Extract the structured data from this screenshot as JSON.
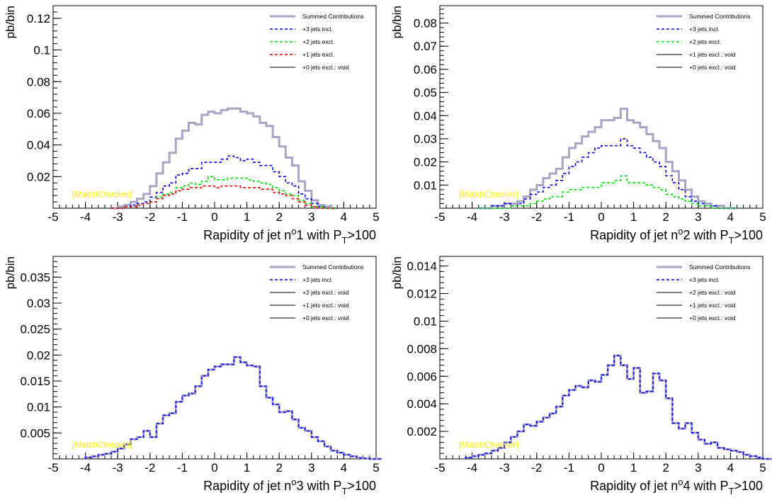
{
  "colors": {
    "summed": "#a8a4c4",
    "jets3": "#0000ee",
    "jets2": "#00dd00",
    "jets1": "#ee0000",
    "void": "#000000",
    "watermark": "#ffee00",
    "axis": "#000000"
  },
  "chart_data": [
    {
      "type": "line",
      "title": "",
      "xlabel_main": "Rapidity of jet n",
      "xlabel_sup": "o",
      "xlabel_num": "1 with P",
      "xlabel_sub": "T",
      "xlabel_tail": ">100",
      "ylabel": "pb/bin",
      "xlim": [
        -5,
        5
      ],
      "ylim": [
        0,
        0.128
      ],
      "yticks": [
        0.02,
        0.04,
        0.06,
        0.08,
        0.1,
        0.12
      ],
      "ytick_labels": [
        "0.02",
        "0.04",
        "0.06",
        "0.08",
        "0.1",
        "0.12"
      ],
      "xticks": [
        -5,
        -4,
        -3,
        -2,
        -1,
        0,
        1,
        2,
        3,
        4,
        5
      ],
      "xtick_labels": [
        "-5",
        "-4",
        "-3",
        "-2",
        "-1",
        "0",
        "1",
        "2",
        "3",
        "4",
        "5"
      ],
      "watermark": "[MatchChecker]",
      "legend_position": "top-right",
      "bin_edges_start": -3.2,
      "bin_width": 0.2,
      "legend": [
        {
          "label": "Summed Contributions",
          "color_key": "summed",
          "style": "solid-thick"
        },
        {
          "label": "+3 jets incl.",
          "color_key": "jets3",
          "style": "dashed"
        },
        {
          "label": "+2 jets excl.",
          "color_key": "jets2",
          "style": "dashed"
        },
        {
          "label": "+1 jets excl.",
          "color_key": "jets1",
          "style": "dashed"
        },
        {
          "label": "+0 jets  excl.: void",
          "color_key": "void",
          "style": "solid"
        }
      ],
      "series": [
        {
          "name": "Summed Contributions",
          "color_key": "summed",
          "style": "solid-thick",
          "values": [
            0.0,
            0.001,
            0.002,
            0.004,
            0.006,
            0.009,
            0.014,
            0.022,
            0.029,
            0.035,
            0.044,
            0.049,
            0.054,
            0.053,
            0.059,
            0.061,
            0.06,
            0.062,
            0.063,
            0.063,
            0.061,
            0.06,
            0.058,
            0.054,
            0.052,
            0.045,
            0.039,
            0.032,
            0.027,
            0.017,
            0.011,
            0.005,
            0.002,
            0.001,
            0.0
          ]
        },
        {
          "name": "+3 jets incl.",
          "color_key": "jets3",
          "style": "dashed",
          "values": [
            0.0,
            0.0,
            0.001,
            0.002,
            0.003,
            0.004,
            0.007,
            0.01,
            0.014,
            0.016,
            0.021,
            0.022,
            0.025,
            0.025,
            0.029,
            0.029,
            0.029,
            0.031,
            0.033,
            0.032,
            0.03,
            0.031,
            0.029,
            0.027,
            0.027,
            0.023,
            0.02,
            0.016,
            0.014,
            0.009,
            0.006,
            0.003,
            0.001,
            0.0,
            0.0
          ]
        },
        {
          "name": "+2 jets excl.",
          "color_key": "jets2",
          "style": "dashed",
          "values": [
            0.0,
            0.0,
            0.001,
            0.001,
            0.002,
            0.003,
            0.004,
            0.007,
            0.009,
            0.01,
            0.013,
            0.014,
            0.016,
            0.015,
            0.017,
            0.02,
            0.018,
            0.018,
            0.019,
            0.019,
            0.019,
            0.018,
            0.017,
            0.016,
            0.015,
            0.013,
            0.011,
            0.009,
            0.008,
            0.005,
            0.003,
            0.001,
            0.001,
            0.0,
            0.0
          ]
        },
        {
          "name": "+1 jets excl.",
          "color_key": "jets1",
          "style": "dashed",
          "values": [
            0.0,
            0.0,
            0.001,
            0.001,
            0.002,
            0.003,
            0.004,
            0.006,
            0.008,
            0.009,
            0.011,
            0.012,
            0.013,
            0.013,
            0.014,
            0.014,
            0.013,
            0.014,
            0.014,
            0.014,
            0.013,
            0.013,
            0.013,
            0.012,
            0.012,
            0.01,
            0.009,
            0.008,
            0.006,
            0.004,
            0.002,
            0.001,
            0.0,
            0.0,
            0.0
          ]
        }
      ]
    },
    {
      "type": "line",
      "title": "",
      "xlabel_main": "Rapidity of jet n",
      "xlabel_sup": "o",
      "xlabel_num": "2 with P",
      "xlabel_sub": "T",
      "xlabel_tail": ">100",
      "ylabel": "pb/bin",
      "xlim": [
        -5,
        5
      ],
      "ylim": [
        0,
        0.0875
      ],
      "yticks": [
        0.01,
        0.02,
        0.03,
        0.04,
        0.05,
        0.06,
        0.07,
        0.08
      ],
      "ytick_labels": [
        "0.01",
        "0.02",
        "0.03",
        "0.04",
        "0.05",
        "0.06",
        "0.07",
        "0.08"
      ],
      "xticks": [
        -5,
        -4,
        -3,
        -2,
        -1,
        0,
        1,
        2,
        3,
        4,
        5
      ],
      "xtick_labels": [
        "-5",
        "-4",
        "-3",
        "-2",
        "-1",
        "0",
        "1",
        "2",
        "3",
        "4",
        "5"
      ],
      "watermark": "[MatchChecker]",
      "legend_position": "top-right",
      "bin_edges_start": -3.8,
      "bin_width": 0.2,
      "legend": [
        {
          "label": "Summed Contributions",
          "color_key": "summed",
          "style": "solid-thick"
        },
        {
          "label": "+3 jets incl.",
          "color_key": "jets3",
          "style": "dashed"
        },
        {
          "label": "+2 jets excl.",
          "color_key": "jets2",
          "style": "dashed"
        },
        {
          "label": "+1 jets excl.: void",
          "color_key": "void",
          "style": "solid"
        },
        {
          "label": "+0 jets  excl.: void",
          "color_key": "void",
          "style": "solid"
        }
      ],
      "series": [
        {
          "name": "Summed Contributions",
          "color_key": "summed",
          "style": "solid-thick",
          "values": [
            0.0,
            0.0,
            0.001,
            0.001,
            0.002,
            0.002,
            0.003,
            0.005,
            0.008,
            0.01,
            0.013,
            0.015,
            0.017,
            0.022,
            0.026,
            0.028,
            0.031,
            0.033,
            0.035,
            0.038,
            0.038,
            0.039,
            0.043,
            0.038,
            0.037,
            0.035,
            0.032,
            0.029,
            0.026,
            0.02,
            0.016,
            0.012,
            0.008,
            0.005,
            0.003,
            0.002,
            0.001,
            0.001,
            0.0,
            0.0
          ]
        },
        {
          "name": "+3 jets incl.",
          "color_key": "jets3",
          "style": "dashed",
          "values": [
            0.0,
            0.0,
            0.001,
            0.001,
            0.002,
            0.001,
            0.002,
            0.004,
            0.006,
            0.007,
            0.009,
            0.01,
            0.012,
            0.015,
            0.018,
            0.02,
            0.022,
            0.024,
            0.026,
            0.027,
            0.027,
            0.027,
            0.03,
            0.027,
            0.026,
            0.024,
            0.022,
            0.02,
            0.018,
            0.014,
            0.011,
            0.008,
            0.005,
            0.003,
            0.002,
            0.001,
            0.001,
            0.0,
            0.0,
            0.0
          ]
        },
        {
          "name": "+2 jets excl.",
          "color_key": "jets2",
          "style": "dashed",
          "values": [
            0.0,
            0.0,
            0.0,
            0.0,
            0.0,
            0.001,
            0.001,
            0.001,
            0.002,
            0.003,
            0.004,
            0.005,
            0.005,
            0.007,
            0.008,
            0.008,
            0.009,
            0.009,
            0.009,
            0.011,
            0.011,
            0.012,
            0.014,
            0.011,
            0.011,
            0.011,
            0.01,
            0.009,
            0.008,
            0.006,
            0.005,
            0.004,
            0.003,
            0.002,
            0.001,
            0.001,
            0.0,
            0.0,
            0.0,
            0.0
          ]
        }
      ]
    },
    {
      "type": "line",
      "title": "",
      "xlabel_main": "Rapidity of jet n",
      "xlabel_sup": "o",
      "xlabel_num": "3 with P",
      "xlabel_sub": "T",
      "xlabel_tail": ">100",
      "ylabel": "pb/bin",
      "xlim": [
        -5,
        5
      ],
      "ylim": [
        0,
        0.039
      ],
      "yticks": [
        0.005,
        0.01,
        0.015,
        0.02,
        0.025,
        0.03,
        0.035
      ],
      "ytick_labels": [
        "0.005",
        "0.01",
        "0.015",
        "0.02",
        "0.025",
        "0.03",
        "0.035"
      ],
      "xticks": [
        -5,
        -4,
        -3,
        -2,
        -1,
        0,
        1,
        2,
        3,
        4,
        5
      ],
      "xtick_labels": [
        "-5",
        "-4",
        "-3",
        "-2",
        "-1",
        "0",
        "1",
        "2",
        "3",
        "4",
        "5"
      ],
      "watermark": "[MatchChecker]",
      "legend_position": "top-right",
      "bin_edges_start": -4.0,
      "bin_width": 0.2,
      "legend": [
        {
          "label": "Summed Contributions",
          "color_key": "summed",
          "style": "solid-thick"
        },
        {
          "label": "+3 jets incl.",
          "color_key": "jets3",
          "style": "dashed"
        },
        {
          "label": "+2 jets excl.: void",
          "color_key": "void",
          "style": "solid"
        },
        {
          "label": "+1 jets excl.: void",
          "color_key": "void",
          "style": "solid"
        },
        {
          "label": "+0 jets  excl.: void",
          "color_key": "void",
          "style": "solid"
        }
      ],
      "series": [
        {
          "name": "+3 jets incl.",
          "color_key": "jets3",
          "style": "dashed-overlay",
          "values": [
            0.0003,
            0.0005,
            0.0008,
            0.001,
            0.0014,
            0.002,
            0.0028,
            0.0038,
            0.0042,
            0.0054,
            0.0042,
            0.0068,
            0.0084,
            0.0088,
            0.011,
            0.0122,
            0.0126,
            0.014,
            0.016,
            0.0172,
            0.0178,
            0.0182,
            0.0182,
            0.0196,
            0.0186,
            0.018,
            0.0178,
            0.014,
            0.0118,
            0.0105,
            0.009,
            0.0092,
            0.0076,
            0.006,
            0.0054,
            0.0042,
            0.0034,
            0.0024,
            0.0016,
            0.0012,
            0.0008,
            0.0005,
            0.0002,
            0.0001,
            0.0,
            0.0
          ]
        }
      ]
    },
    {
      "type": "line",
      "title": "",
      "xlabel_main": "Rapidity of jet n",
      "xlabel_sup": "o",
      "xlabel_num": "4 with P",
      "xlabel_sub": "T",
      "xlabel_tail": ">100",
      "ylabel": "pb/bin",
      "xlim": [
        -5,
        5
      ],
      "ylim": [
        0,
        0.0147
      ],
      "yticks": [
        0.002,
        0.004,
        0.006,
        0.008,
        0.01,
        0.012,
        0.014
      ],
      "ytick_labels": [
        "0.002",
        "0.004",
        "0.006",
        "0.008",
        "0.01",
        "0.012",
        "0.014"
      ],
      "xticks": [
        -5,
        -4,
        -3,
        -2,
        -1,
        0,
        1,
        2,
        3,
        4,
        5
      ],
      "xtick_labels": [
        "-5",
        "-4",
        "-3",
        "-2",
        "-1",
        "0",
        "1",
        "2",
        "3",
        "4",
        "5"
      ],
      "watermark": "[MatchChecker]",
      "legend_position": "top-right",
      "bin_edges_start": -4.2,
      "bin_width": 0.2,
      "legend": [
        {
          "label": "Summed Contributions",
          "color_key": "summed",
          "style": "solid-thick"
        },
        {
          "label": "+3 jets incl.",
          "color_key": "jets3",
          "style": "dashed"
        },
        {
          "label": "+2 jets excl.: void",
          "color_key": "void",
          "style": "solid"
        },
        {
          "label": "+1 jets excl.: void",
          "color_key": "void",
          "style": "solid"
        },
        {
          "label": "+0 jets  excl.: void",
          "color_key": "void",
          "style": "solid"
        }
      ],
      "series": [
        {
          "name": "+3 jets incl.",
          "color_key": "jets3",
          "style": "dashed-overlay",
          "values": [
            0.0001,
            0.0002,
            0.0003,
            0.0004,
            0.0006,
            0.0008,
            0.0012,
            0.0016,
            0.002,
            0.0025,
            0.0024,
            0.0027,
            0.003,
            0.0033,
            0.0038,
            0.0046,
            0.005,
            0.0053,
            0.0052,
            0.0057,
            0.0056,
            0.0061,
            0.0068,
            0.0075,
            0.0068,
            0.0058,
            0.0066,
            0.0048,
            0.0049,
            0.0062,
            0.0057,
            0.0044,
            0.0026,
            0.0022,
            0.0026,
            0.0019,
            0.0014,
            0.0011,
            0.0012,
            0.0008,
            0.0007,
            0.0006,
            0.0005,
            0.0003,
            0.0002,
            0.0001,
            0.0,
            0.0
          ]
        }
      ]
    }
  ]
}
